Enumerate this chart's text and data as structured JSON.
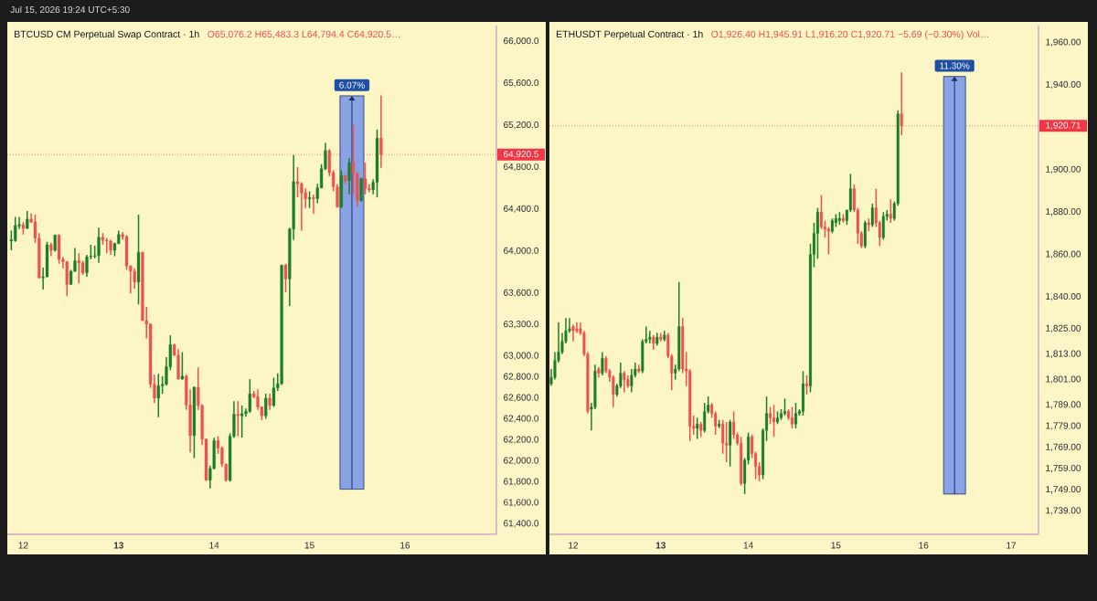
{
  "chart_data": [
    {
      "type": "candlestick",
      "title": "BTCUSD CM Perpetual Swap Contract · 1h",
      "subtitle": "O65,076.2 H65,483.3 L64,794.4 C64,920.5…",
      "annotations": [
        "Jul 15, 2026 19:24 UTC+5:30",
        {
          "text": "6.07%",
          "x": "2026-07-15T10:40",
          "y": 65480
        }
      ],
      "x": [
        "2026-07-11T21:00",
        "2026-07-11T22:00",
        "2026-07-11T23:00",
        "2026-07-12T00:00",
        "2026-07-12T01:00",
        "2026-07-12T02:00",
        "2026-07-12T03:00",
        "2026-07-12T04:00",
        "2026-07-12T05:00",
        "2026-07-12T06:00",
        "2026-07-12T07:00",
        "2026-07-12T08:00",
        "2026-07-12T09:00",
        "2026-07-12T10:00",
        "2026-07-12T11:00",
        "2026-07-12T12:00",
        "2026-07-12T13:00",
        "2026-07-12T14:00",
        "2026-07-12T15:00",
        "2026-07-12T16:00",
        "2026-07-12T17:00",
        "2026-07-12T18:00",
        "2026-07-12T19:00",
        "2026-07-12T20:00",
        "2026-07-12T21:00",
        "2026-07-12T22:00",
        "2026-07-12T23:00",
        "2026-07-13T00:00",
        "2026-07-13T01:00",
        "2026-07-13T02:00",
        "2026-07-13T03:00",
        "2026-07-13T04:00",
        "2026-07-13T05:00",
        "2026-07-13T06:00",
        "2026-07-13T07:00",
        "2026-07-13T08:00",
        "2026-07-13T09:00",
        "2026-07-13T10:00",
        "2026-07-13T11:00",
        "2026-07-13T12:00",
        "2026-07-13T13:00",
        "2026-07-13T14:00",
        "2026-07-13T15:00",
        "2026-07-13T16:00",
        "2026-07-13T17:00",
        "2026-07-13T18:00",
        "2026-07-13T19:00",
        "2026-07-13T20:00",
        "2026-07-13T21:00",
        "2026-07-13T22:00",
        "2026-07-13T23:00",
        "2026-07-14T00:00",
        "2026-07-14T01:00",
        "2026-07-14T02:00",
        "2026-07-14T03:00",
        "2026-07-14T04:00",
        "2026-07-14T05:00",
        "2026-07-14T06:00",
        "2026-07-14T07:00",
        "2026-07-14T08:00",
        "2026-07-14T09:00",
        "2026-07-14T10:00",
        "2026-07-14T11:00",
        "2026-07-14T12:00",
        "2026-07-14T13:00",
        "2026-07-14T14:00",
        "2026-07-14T15:00",
        "2026-07-14T16:00",
        "2026-07-14T17:00",
        "2026-07-14T18:00",
        "2026-07-14T19:00",
        "2026-07-14T20:00",
        "2026-07-14T21:00",
        "2026-07-14T22:00",
        "2026-07-14T23:00",
        "2026-07-15T00:00",
        "2026-07-15T01:00",
        "2026-07-15T02:00",
        "2026-07-15T03:00",
        "2026-07-15T04:00",
        "2026-07-15T05:00",
        "2026-07-15T06:00",
        "2026-07-15T07:00",
        "2026-07-15T08:00",
        "2026-07-15T09:00",
        "2026-07-15T10:00",
        "2026-07-15T11:00",
        "2026-07-15T12:00",
        "2026-07-15T13:00",
        "2026-07-15T14:00",
        "2026-07-15T15:00",
        "2026-07-15T16:00",
        "2026-07-15T17:00",
        "2026-07-15T18:00"
      ],
      "ohlc": [
        [
          64095,
          64195,
          64008,
          64109
        ],
        [
          64100,
          64325,
          64089,
          64244
        ],
        [
          64240,
          64325,
          64210,
          64253
        ],
        [
          64250,
          64276,
          64158,
          64216
        ],
        [
          64216,
          64382,
          64210,
          64305
        ],
        [
          64305,
          64359,
          64267,
          64276
        ],
        [
          64280,
          64348,
          64080,
          64124
        ],
        [
          64124,
          64172,
          63740,
          63744
        ],
        [
          63744,
          63842,
          63634,
          63755
        ],
        [
          63755,
          64089,
          63749,
          64060
        ],
        [
          64060,
          64080,
          63951,
          64008
        ],
        [
          64008,
          64158,
          63994,
          64152
        ],
        [
          64152,
          64160,
          63879,
          63922
        ],
        [
          63922,
          63945,
          63836,
          63899
        ],
        [
          63899,
          63905,
          63571,
          63683
        ],
        [
          63683,
          63821,
          63678,
          63807
        ],
        [
          63807,
          64029,
          63801,
          63908
        ],
        [
          63908,
          63980,
          63692,
          63888
        ],
        [
          63888,
          63908,
          63773,
          63793
        ],
        [
          63793,
          63965,
          63755,
          63945
        ],
        [
          63945,
          64060,
          63922,
          63951
        ],
        [
          63951,
          64052,
          63931,
          63957
        ],
        [
          63957,
          64224,
          63888,
          64132
        ],
        [
          64132,
          64172,
          64060,
          64103
        ],
        [
          64103,
          64124,
          63980,
          64095
        ],
        [
          64095,
          64109,
          63965,
          64008
        ],
        [
          64008,
          64080,
          63951,
          64072
        ],
        [
          64072,
          64195,
          64066,
          64158
        ],
        [
          64158,
          64181,
          64109,
          64138
        ],
        [
          64138,
          64152,
          63821,
          63859
        ],
        [
          63859,
          63865,
          63597,
          63807
        ],
        [
          63807,
          63836,
          63640,
          63706
        ],
        [
          63706,
          64348,
          63491,
          63988
        ],
        [
          63988,
          63994,
          63332,
          63338
        ],
        [
          63338,
          63468,
          63168,
          63304
        ],
        [
          63304,
          63310,
          62696,
          62730
        ],
        [
          62730,
          62822,
          62551,
          62598
        ],
        [
          62598,
          62830,
          62417,
          62716
        ],
        [
          62716,
          62808,
          62640,
          62730
        ],
        [
          62730,
          62989,
          62718,
          62897
        ],
        [
          62897,
          63197,
          62864,
          63108
        ],
        [
          63108,
          63117,
          63001,
          63007
        ],
        [
          63007,
          63065,
          62774,
          62780
        ],
        [
          62780,
          63036,
          62774,
          62808
        ],
        [
          62808,
          62822,
          62487,
          62534
        ],
        [
          62534,
          62682,
          62082,
          62241
        ],
        [
          62241,
          62710,
          62026,
          62702
        ],
        [
          62702,
          62891,
          62486,
          62528
        ],
        [
          62528,
          62540,
          62151,
          62207
        ],
        [
          62207,
          62215,
          61810,
          61816
        ],
        [
          61816,
          61955,
          61738,
          61927
        ],
        [
          61927,
          62221,
          61920,
          62193
        ],
        [
          62193,
          62235,
          62067,
          62123
        ],
        [
          62123,
          62137,
          61941,
          61969
        ],
        [
          61969,
          61975,
          61802,
          61816
        ],
        [
          61816,
          62263,
          61802,
          62235
        ],
        [
          62235,
          62570,
          62221,
          62444
        ],
        [
          62444,
          62570,
          62235,
          62430
        ],
        [
          62430,
          62528,
          62221,
          62450
        ],
        [
          62450,
          62500,
          62420,
          62472
        ],
        [
          62472,
          62779,
          62458,
          62640
        ],
        [
          62640,
          62668,
          62598,
          62612
        ],
        [
          62612,
          62682,
          62486,
          62514
        ],
        [
          62514,
          62520,
          62388,
          62430
        ],
        [
          62430,
          62640,
          62402,
          62598
        ],
        [
          62598,
          62640,
          62486,
          62528
        ],
        [
          62528,
          62793,
          62514,
          62696
        ],
        [
          62696,
          62835,
          62668,
          62737
        ],
        [
          62737,
          63870,
          62723,
          63865
        ],
        [
          63865,
          63879,
          63606,
          63735
        ],
        [
          63735,
          64224,
          63476,
          64210
        ],
        [
          64210,
          64915,
          64109,
          64662
        ],
        [
          64662,
          64800,
          64512,
          64642
        ],
        [
          64642,
          64656,
          64196,
          64555
        ],
        [
          64555,
          64598,
          64411,
          64498
        ],
        [
          64498,
          64570,
          64411,
          64510
        ],
        [
          64510,
          64540,
          64354,
          64500
        ],
        [
          64500,
          64642,
          64455,
          64604
        ],
        [
          64604,
          64829,
          64598,
          64785
        ],
        [
          64785,
          65030,
          64771,
          64958
        ],
        [
          64958,
          64972,
          64714,
          64748
        ],
        [
          64748,
          64771,
          64570,
          64613
        ],
        [
          64613,
          64640,
          64415,
          64420
        ],
        [
          64420,
          64771,
          64411,
          64719
        ],
        [
          64719,
          64728,
          64642,
          64670
        ],
        [
          64670,
          64886,
          64541,
          64843
        ],
        [
          64843,
          65203,
          64541,
          64742
        ],
        [
          64742,
          64750,
          64426,
          64483
        ],
        [
          64483,
          64700,
          64470,
          64691
        ],
        [
          64691,
          64843,
          64541,
          64598
        ],
        [
          64598,
          64640,
          64560,
          64584
        ],
        [
          64584,
          64685,
          64541,
          64656
        ],
        [
          64656,
          65160,
          64512,
          65076
        ],
        [
          65076.2,
          65483.3,
          64794.4,
          64920.5
        ]
      ],
      "series": [
        {
          "type": "bar",
          "x": [
            "2026-07-15T10:40"
          ],
          "base": [
            61730
          ],
          "values": [
            3750
          ],
          "color": "#89a3e6"
        }
      ],
      "xlim": [
        "2026-07-11T20:00",
        "2026-07-16T23:00"
      ],
      "ylim": [
        61300,
        66150
      ],
      "xticks": [
        {
          "value": "2026-07-12",
          "label": "12"
        },
        {
          "value": "2026-07-13",
          "label": "**13**"
        },
        {
          "value": "2026-07-14",
          "label": "14"
        },
        {
          "value": "2026-07-15",
          "label": "15"
        },
        {
          "value": "2026-07-16",
          "label": "16"
        }
      ],
      "yticks": [
        {
          "value": 61400,
          "label": "61,400.0"
        },
        {
          "value": 61600,
          "label": "61,600.0"
        },
        {
          "value": 61800,
          "label": "61,800.0"
        },
        {
          "value": 62000,
          "label": "62,000.0"
        },
        {
          "value": 62200,
          "label": "62,200.0"
        },
        {
          "value": 62400,
          "label": "62,400.0"
        },
        {
          "value": 62600,
          "label": "62,600.0"
        },
        {
          "value": 62800,
          "label": "62,800.0"
        },
        {
          "value": 63000,
          "label": "63,000.0"
        },
        {
          "value": 63300,
          "label": "63,300.0"
        },
        {
          "value": 63600,
          "label": "63,600.0"
        },
        {
          "value": 64000,
          "label": "64,000.0"
        },
        {
          "value": 64400,
          "label": "64,400.0"
        },
        {
          "value": 64800,
          "label": "64,800.0"
        },
        {
          "value": 65200,
          "label": "65,200.0"
        },
        {
          "value": 65600,
          "label": "65,600.0"
        },
        {
          "value": 66000,
          "label": "66,000.0"
        }
      ],
      "ref_lines": [
        {
          "axis": "y",
          "value": 64920.5,
          "label": "64,920.5",
          "color": "#f23645"
        }
      ]
    },
    {
      "type": "candlestick",
      "title": "ETHUSDT Perpetual Contract · 1h",
      "subtitle": "O1,926.40 H1,945.91 L1,916.20 C1,920.71 −5.69 (−0.30%) Vol…",
      "annotations": [
        {
          "text": "11.30%",
          "x": "2026-07-16T08:30",
          "y": 1944
        }
      ],
      "x": [
        "2026-07-11T18:00",
        "2026-07-11T19:00",
        "2026-07-11T20:00",
        "2026-07-11T21:00",
        "2026-07-11T22:00",
        "2026-07-11T23:00",
        "2026-07-12T00:00",
        "2026-07-12T01:00",
        "2026-07-12T02:00",
        "2026-07-12T03:00",
        "2026-07-12T04:00",
        "2026-07-12T05:00",
        "2026-07-12T06:00",
        "2026-07-12T07:00",
        "2026-07-12T08:00",
        "2026-07-12T09:00",
        "2026-07-12T10:00",
        "2026-07-12T11:00",
        "2026-07-12T12:00",
        "2026-07-12T13:00",
        "2026-07-12T14:00",
        "2026-07-12T15:00",
        "2026-07-12T16:00",
        "2026-07-12T17:00",
        "2026-07-12T18:00",
        "2026-07-12T19:00",
        "2026-07-12T20:00",
        "2026-07-12T21:00",
        "2026-07-12T22:00",
        "2026-07-12T23:00",
        "2026-07-13T00:00",
        "2026-07-13T01:00",
        "2026-07-13T02:00",
        "2026-07-13T03:00",
        "2026-07-13T04:00",
        "2026-07-13T05:00",
        "2026-07-13T06:00",
        "2026-07-13T07:00",
        "2026-07-13T08:00",
        "2026-07-13T09:00",
        "2026-07-13T10:00",
        "2026-07-13T11:00",
        "2026-07-13T12:00",
        "2026-07-13T13:00",
        "2026-07-13T14:00",
        "2026-07-13T15:00",
        "2026-07-13T16:00",
        "2026-07-13T17:00",
        "2026-07-13T18:00",
        "2026-07-13T19:00",
        "2026-07-13T20:00",
        "2026-07-13T21:00",
        "2026-07-13T22:00",
        "2026-07-13T23:00",
        "2026-07-14T00:00",
        "2026-07-14T01:00",
        "2026-07-14T02:00",
        "2026-07-14T03:00",
        "2026-07-14T04:00",
        "2026-07-14T05:00",
        "2026-07-14T06:00",
        "2026-07-14T07:00",
        "2026-07-14T08:00",
        "2026-07-14T09:00",
        "2026-07-14T10:00",
        "2026-07-14T11:00",
        "2026-07-14T12:00",
        "2026-07-14T13:00",
        "2026-07-14T14:00",
        "2026-07-14T15:00",
        "2026-07-14T16:00",
        "2026-07-14T17:00",
        "2026-07-14T18:00",
        "2026-07-14T19:00",
        "2026-07-14T20:00",
        "2026-07-14T21:00",
        "2026-07-14T22:00",
        "2026-07-14T23:00",
        "2026-07-15T00:00",
        "2026-07-15T01:00",
        "2026-07-15T02:00",
        "2026-07-15T03:00",
        "2026-07-15T04:00",
        "2026-07-15T05:00",
        "2026-07-15T06:00",
        "2026-07-15T07:00",
        "2026-07-15T08:00",
        "2026-07-15T09:00",
        "2026-07-15T10:00",
        "2026-07-15T11:00",
        "2026-07-15T12:00",
        "2026-07-15T13:00",
        "2026-07-15T14:00",
        "2026-07-15T15:00",
        "2026-07-15T16:00",
        "2026-07-15T17:00",
        "2026-07-15T18:00"
      ],
      "ohlc": [
        [
          1799,
          1806,
          1798,
          1802
        ],
        [
          1802,
          1814,
          1801,
          1810
        ],
        [
          1810,
          1828,
          1809,
          1814
        ],
        [
          1814,
          1823,
          1813,
          1819
        ],
        [
          1819,
          1830,
          1818,
          1824
        ],
        [
          1824,
          1830,
          1823,
          1825
        ],
        [
          1826,
          1827,
          1819,
          1824
        ],
        [
          1825,
          1828,
          1823,
          1824
        ],
        [
          1825,
          1828,
          1822,
          1823
        ],
        [
          1823,
          1824,
          1812,
          1813
        ],
        [
          1813,
          1814,
          1785,
          1786
        ],
        [
          1787,
          1790,
          1777,
          1788
        ],
        [
          1788,
          1808,
          1787,
          1805
        ],
        [
          1806,
          1807,
          1802,
          1804
        ],
        [
          1804,
          1814,
          1803,
          1811
        ],
        [
          1811,
          1812,
          1804,
          1805
        ],
        [
          1805,
          1806,
          1800,
          1802
        ],
        [
          1802,
          1803,
          1788,
          1794
        ],
        [
          1794,
          1799,
          1793,
          1798
        ],
        [
          1798,
          1809,
          1797,
          1804
        ],
        [
          1804,
          1805,
          1795,
          1801
        ],
        [
          1801,
          1803,
          1797,
          1798
        ],
        [
          1798,
          1806,
          1795,
          1803
        ],
        [
          1803,
          1809,
          1802,
          1806
        ],
        [
          1806,
          1808,
          1804,
          1805
        ],
        [
          1805,
          1820,
          1804,
          1819
        ],
        [
          1819,
          1826,
          1818,
          1820
        ],
        [
          1820,
          1824,
          1818,
          1821
        ],
        [
          1821,
          1822,
          1815,
          1818
        ],
        [
          1818,
          1823,
          1817,
          1821
        ],
        [
          1821,
          1823,
          1819,
          1820
        ],
        [
          1820,
          1824,
          1819,
          1822
        ],
        [
          1822,
          1823,
          1811,
          1812
        ],
        [
          1812,
          1813,
          1796,
          1804
        ],
        [
          1804,
          1808,
          1801,
          1806
        ],
        [
          1806,
          1847,
          1805,
          1826
        ],
        [
          1826,
          1830,
          1804,
          1806
        ],
        [
          1806,
          1814,
          1798,
          1805
        ],
        [
          1805,
          1806,
          1772,
          1779
        ],
        [
          1779,
          1784,
          1775,
          1778
        ],
        [
          1778,
          1783,
          1773,
          1780
        ],
        [
          1780,
          1781,
          1774,
          1777
        ],
        [
          1777,
          1790,
          1776,
          1786
        ],
        [
          1786,
          1793,
          1785,
          1789
        ],
        [
          1789,
          1790,
          1783,
          1785
        ],
        [
          1785,
          1786,
          1775,
          1779
        ],
        [
          1779,
          1782,
          1778,
          1780
        ],
        [
          1780,
          1782,
          1766,
          1771
        ],
        [
          1771,
          1781,
          1762,
          1770
        ],
        [
          1770,
          1782,
          1760,
          1781
        ],
        [
          1781,
          1786,
          1773,
          1775
        ],
        [
          1775,
          1776,
          1770,
          1771
        ],
        [
          1771,
          1774,
          1751,
          1752
        ],
        [
          1752,
          1764,
          1747,
          1763
        ],
        [
          1763,
          1776,
          1761,
          1774
        ],
        [
          1774,
          1775,
          1764,
          1766
        ],
        [
          1766,
          1767,
          1754,
          1760
        ],
        [
          1760,
          1762,
          1753,
          1756
        ],
        [
          1756,
          1778,
          1754,
          1777
        ],
        [
          1777,
          1793,
          1772,
          1785
        ],
        [
          1785,
          1788,
          1780,
          1783
        ],
        [
          1783,
          1789,
          1774,
          1781
        ],
        [
          1781,
          1786,
          1780,
          1783
        ],
        [
          1783,
          1787,
          1782,
          1785
        ],
        [
          1785,
          1792,
          1784,
          1786
        ],
        [
          1786,
          1787,
          1782,
          1783
        ],
        [
          1783,
          1788,
          1778,
          1780
        ],
        [
          1780,
          1790,
          1778,
          1785
        ],
        [
          1785,
          1787,
          1784,
          1786
        ],
        [
          1786,
          1805,
          1784,
          1799
        ],
        [
          1799,
          1803,
          1794,
          1798
        ],
        [
          1798,
          1865,
          1795,
          1860
        ],
        [
          1860,
          1875,
          1854,
          1870
        ],
        [
          1870,
          1882,
          1858,
          1880
        ],
        [
          1880,
          1888,
          1872,
          1873
        ],
        [
          1873,
          1876,
          1868,
          1872
        ],
        [
          1872,
          1873,
          1860,
          1871
        ],
        [
          1871,
          1877,
          1870,
          1876
        ],
        [
          1875,
          1879,
          1873,
          1877
        ],
        [
          1876,
          1880,
          1874,
          1877
        ],
        [
          1877,
          1879,
          1875,
          1876
        ],
        [
          1876,
          1881,
          1874,
          1881
        ],
        [
          1881,
          1898,
          1880,
          1891
        ],
        [
          1891,
          1893,
          1880,
          1881
        ],
        [
          1881,
          1882,
          1865,
          1870
        ],
        [
          1870,
          1871,
          1863,
          1864
        ],
        [
          1864,
          1876,
          1863,
          1875
        ],
        [
          1875,
          1877,
          1871,
          1874
        ],
        [
          1874,
          1884,
          1873,
          1882
        ],
        [
          1882,
          1891,
          1873,
          1875
        ],
        [
          1875,
          1876,
          1864,
          1868
        ],
        [
          1868,
          1880,
          1867,
          1878
        ],
        [
          1878,
          1881,
          1876,
          1879
        ],
        [
          1879,
          1886,
          1875,
          1877
        ],
        [
          1877,
          1885,
          1876,
          1884
        ],
        [
          1884,
          1928,
          1883,
          1926.4
        ],
        [
          1926.4,
          1945.91,
          1916.2,
          1920.71
        ]
      ],
      "series": [
        {
          "type": "bar",
          "x": [
            "2026-07-16T08:30"
          ],
          "base": [
            1747
          ],
          "values": [
            197
          ],
          "color": "#89a3e6"
        }
      ],
      "xlim": [
        "2026-07-11T17:30",
        "2026-07-17T07:30"
      ],
      "ylim": [
        1728,
        1968
      ],
      "xticks": [
        {
          "value": "2026-07-12",
          "label": "12"
        },
        {
          "value": "2026-07-13",
          "label": "**13**"
        },
        {
          "value": "2026-07-14",
          "label": "14"
        },
        {
          "value": "2026-07-15",
          "label": "15"
        },
        {
          "value": "2026-07-16",
          "label": "16"
        },
        {
          "value": "2026-07-17",
          "label": "17"
        }
      ],
      "yticks": [
        {
          "value": 1739,
          "label": "1,739.00"
        },
        {
          "value": 1749,
          "label": "1,749.00"
        },
        {
          "value": 1759,
          "label": "1,759.00"
        },
        {
          "value": 1769,
          "label": "1,769.00"
        },
        {
          "value": 1779,
          "label": "1,779.00"
        },
        {
          "value": 1789,
          "label": "1,789.00"
        },
        {
          "value": 1801,
          "label": "1,801.00"
        },
        {
          "value": 1813,
          "label": "1,813.00"
        },
        {
          "value": 1825,
          "label": "1,825.00"
        },
        {
          "value": 1840,
          "label": "1,840.00"
        },
        {
          "value": 1860,
          "label": "1,860.00"
        },
        {
          "value": 1880,
          "label": "1,880.00"
        },
        {
          "value": 1900,
          "label": "1,900.00"
        },
        {
          "value": 1940,
          "label": "1,940.00"
        },
        {
          "value": 1960,
          "label": "1,960.00"
        }
      ],
      "ref_lines": [
        {
          "axis": "y",
          "value": 1920.71,
          "label": "1,920.71",
          "color": "#f23645"
        }
      ]
    }
  ]
}
